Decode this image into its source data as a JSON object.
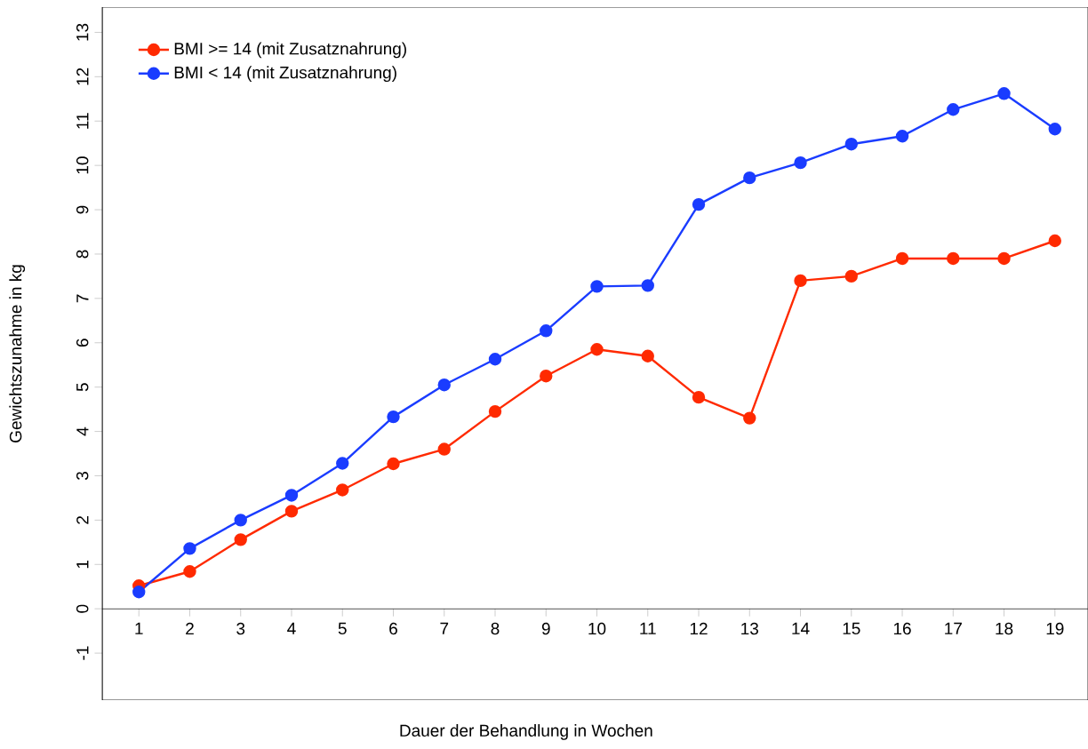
{
  "chart_data": {
    "type": "line",
    "xlabel": "Dauer der Behandlung in Wochen",
    "ylabel": "Gewichtszunahme in kg",
    "x": [
      1,
      2,
      3,
      4,
      5,
      6,
      7,
      8,
      9,
      10,
      11,
      12,
      13,
      14,
      15,
      16,
      17,
      18,
      19
    ],
    "series": [
      {
        "name": "BMI >= 14 (mit Zusatznahrung)",
        "color": "#ff2a00",
        "values": [
          0.52,
          0.84,
          1.56,
          2.2,
          2.68,
          3.27,
          3.6,
          4.45,
          5.25,
          5.85,
          5.7,
          4.77,
          4.3,
          7.4,
          7.5,
          7.9,
          7.9,
          7.9,
          8.3
        ]
      },
      {
        "name": "BMI < 14 (mit Zusatznahrung)",
        "color": "#1a3cff",
        "values": [
          0.38,
          1.36,
          2.0,
          2.56,
          3.28,
          4.33,
          5.05,
          5.63,
          6.27,
          7.27,
          7.29,
          9.12,
          9.72,
          10.06,
          10.48,
          10.66,
          11.26,
          11.62,
          10.82
        ]
      }
    ],
    "xlim": [
      0.28,
      19.65
    ],
    "ylim": [
      -2.06,
      13.57
    ],
    "xticks": [
      1,
      2,
      3,
      4,
      5,
      6,
      7,
      8,
      9,
      10,
      11,
      12,
      13,
      14,
      15,
      16,
      17,
      18,
      19
    ],
    "yticks": [
      -1,
      0,
      1,
      2,
      3,
      4,
      5,
      6,
      7,
      8,
      9,
      10,
      11,
      12,
      13
    ],
    "grid": false,
    "legend": "top left",
    "marker": "circle",
    "line_style": "solid"
  }
}
